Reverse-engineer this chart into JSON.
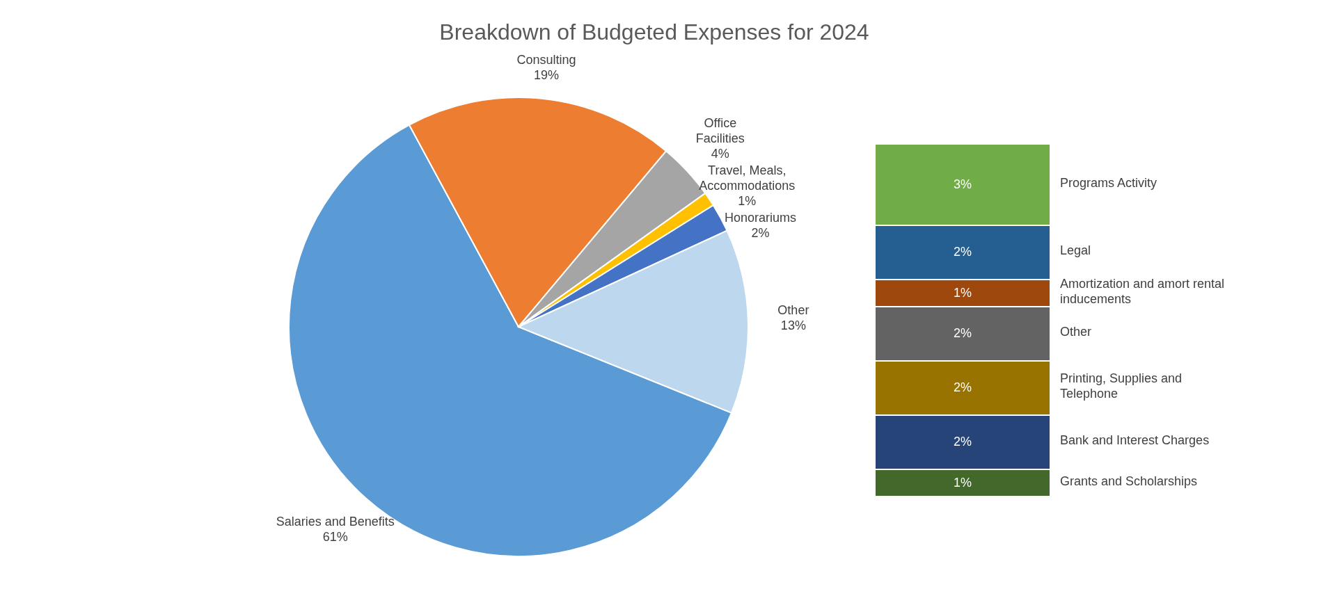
{
  "chart_data": [
    {
      "type": "pie",
      "title": "Breakdown of Budgeted Expenses for 2024",
      "categories": [
        "Salaries and Benefits",
        "Consulting",
        "Office Facilities",
        "Travel, Meals, Accommodations",
        "Honorariums",
        "Other"
      ],
      "values": [
        61,
        19,
        4,
        1,
        2,
        13
      ],
      "colors": [
        "#5b9bd5",
        "#ed7d31",
        "#a5a5a5",
        "#ffc000",
        "#4472c4",
        "#bdd7ee"
      ],
      "value_labels": [
        "61%",
        "19%",
        "4%",
        "1%",
        "2%",
        "13%"
      ]
    },
    {
      "type": "bar",
      "stacked": true,
      "categories": [
        null
      ],
      "series": [
        {
          "name": "Grants and Scholarships",
          "color": "#43682b",
          "values": [
            1
          ],
          "value_labels": [
            "1%"
          ]
        },
        {
          "name": "Bank and Interest Charges",
          "color": "#264478",
          "values": [
            2
          ],
          "value_labels": [
            "2%"
          ]
        },
        {
          "name": "Printing, Supplies and Telephone",
          "color": "#997300",
          "values": [
            2
          ],
          "value_labels": [
            "2%"
          ]
        },
        {
          "name": "Other",
          "color": "#636363",
          "values": [
            2
          ],
          "value_labels": [
            "2%"
          ]
        },
        {
          "name": "Amortization and amort rental inducements",
          "color": "#9e480e",
          "values": [
            1
          ],
          "value_labels": [
            "1%"
          ]
        },
        {
          "name": "Legal",
          "color": "#255e91",
          "values": [
            2
          ],
          "value_labels": [
            "2%"
          ]
        },
        {
          "name": "Programs Activity",
          "color": "#70ad47",
          "values": [
            3
          ],
          "value_labels": [
            "3%"
          ]
        }
      ]
    }
  ]
}
